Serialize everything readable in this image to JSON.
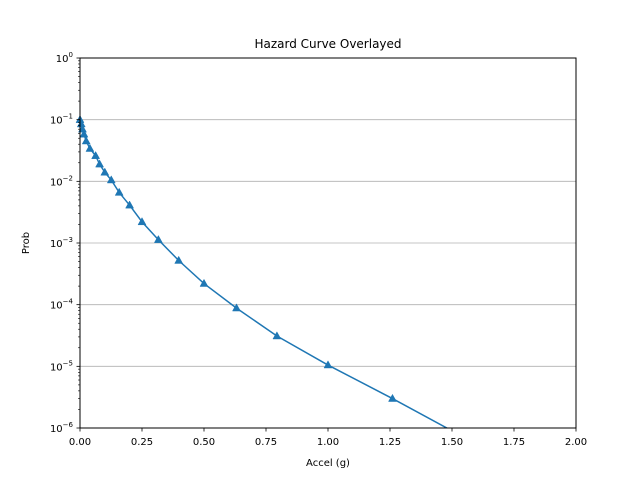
{
  "chart_data": {
    "type": "line",
    "title": "Hazard Curve Overlayed",
    "xlabel": "Accel (g)",
    "ylabel": "Prob",
    "xlim": [
      0,
      2.0
    ],
    "ylim": [
      1e-06,
      1
    ],
    "yscale": "log",
    "grid": "y-major",
    "x_ticks": [
      0.0,
      0.25,
      0.5,
      0.75,
      1.0,
      1.25,
      1.5,
      1.75,
      2.0
    ],
    "x_tick_labels": [
      "0.00",
      "0.25",
      "0.50",
      "0.75",
      "1.00",
      "1.25",
      "1.50",
      "1.75",
      "2.00"
    ],
    "y_ticks": [
      1e-06,
      1e-05,
      0.0001,
      0.001,
      0.01,
      0.1,
      1
    ],
    "y_tick_labels": [
      {
        "base": "10",
        "exp": "−6"
      },
      {
        "base": "10",
        "exp": "−5"
      },
      {
        "base": "10",
        "exp": "−4"
      },
      {
        "base": "10",
        "exp": "−3"
      },
      {
        "base": "10",
        "exp": "−2"
      },
      {
        "base": "10",
        "exp": "−1"
      },
      {
        "base": "10",
        "exp": "0"
      }
    ],
    "series": [
      {
        "color": "#1f77b4",
        "marker": "triangle-up",
        "x": [
          0.0,
          0.005,
          0.01,
          0.016,
          0.025,
          0.04,
          0.063,
          0.079,
          0.1,
          0.126,
          0.158,
          0.2,
          0.25,
          0.316,
          0.398,
          0.5,
          0.631,
          0.794,
          1.0,
          1.26,
          1.5
        ],
        "y": [
          0.1,
          0.085,
          0.07,
          0.058,
          0.045,
          0.034,
          0.026,
          0.019,
          0.014,
          0.0105,
          0.0066,
          0.0041,
          0.0022,
          0.00113,
          0.00052,
          0.00022,
          8.8e-05,
          3.1e-05,
          1.05e-05,
          3e-06,
          9e-07
        ],
        "marker_x": [
          0.0,
          0.005,
          0.01,
          0.016,
          0.025,
          0.04,
          0.063,
          0.079,
          0.1,
          0.126,
          0.158,
          0.2,
          0.25,
          0.316,
          0.398,
          0.5,
          0.631,
          0.794,
          1.0,
          1.26
        ]
      }
    ]
  }
}
